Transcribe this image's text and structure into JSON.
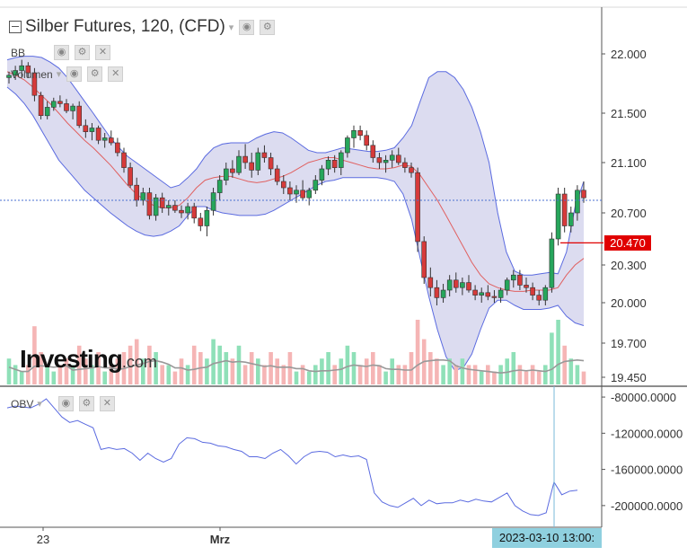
{
  "header": {
    "title": "Silber Futures, 120, (CFD)",
    "bb_label": "BB",
    "volume_label": "Volumen",
    "obv_label": "OBV"
  },
  "price_tag": "20.470",
  "date_tag": "2023-03-10 13:00:",
  "logo": {
    "text": "Investing",
    "suffix": ".com"
  },
  "colors": {
    "up": "#26a65b",
    "down": "#d63a3a",
    "band_line": "#5b6be0",
    "band_fill": "#dcdcf0",
    "mid_line": "#e06060",
    "obv_line": "#5b6be0",
    "vol_up": "#8fe0b8",
    "vol_down": "#f5b5b5",
    "vol_ma": "#999999",
    "price_line": "#4a6fd0",
    "crosshair": "#7ab8d8"
  },
  "chart_data": [
    {
      "type": "candlestick",
      "title": "Silber Futures, 120, (CFD)",
      "xlabels": [
        "23",
        "Mrz"
      ],
      "ylim": [
        19.4,
        22.2
      ],
      "yticks": [
        "22.000",
        "21.500",
        "21.100",
        "20.700",
        "20.300",
        "20.000",
        "19.700",
        "19.450"
      ],
      "current_price": 20.47,
      "last_close_line": 20.8,
      "indicators": [
        "BB",
        "Volumen"
      ],
      "candles": [
        [
          21.8,
          21.85,
          21.75,
          21.82
        ],
        [
          21.82,
          21.9,
          21.78,
          21.86
        ],
        [
          21.86,
          21.95,
          21.8,
          21.9
        ],
        [
          21.9,
          21.93,
          21.8,
          21.84
        ],
        [
          21.84,
          21.88,
          21.6,
          21.65
        ],
        [
          21.65,
          21.68,
          21.45,
          21.48
        ],
        [
          21.48,
          21.6,
          21.45,
          21.55
        ],
        [
          21.55,
          21.63,
          21.52,
          21.6
        ],
        [
          21.6,
          21.65,
          21.55,
          21.58
        ],
        [
          21.58,
          21.62,
          21.5,
          21.52
        ],
        [
          21.52,
          21.58,
          21.45,
          21.56
        ],
        [
          21.56,
          21.6,
          21.38,
          21.4
        ],
        [
          21.4,
          21.45,
          21.3,
          21.35
        ],
        [
          21.35,
          21.42,
          21.28,
          21.38
        ],
        [
          21.38,
          21.4,
          21.25,
          21.28
        ],
        [
          21.28,
          21.34,
          21.22,
          21.3
        ],
        [
          21.3,
          21.36,
          21.24,
          21.26
        ],
        [
          21.26,
          21.3,
          21.15,
          21.18
        ],
        [
          21.18,
          21.22,
          21.02,
          21.06
        ],
        [
          21.06,
          21.1,
          20.9,
          20.92
        ],
        [
          20.92,
          20.98,
          20.75,
          20.8
        ],
        [
          20.8,
          20.9,
          20.76,
          20.86
        ],
        [
          20.86,
          20.9,
          20.65,
          20.68
        ],
        [
          20.68,
          20.85,
          20.64,
          20.82
        ],
        [
          20.82,
          20.86,
          20.7,
          20.74
        ],
        [
          20.74,
          20.8,
          20.68,
          20.76
        ],
        [
          20.76,
          20.8,
          20.7,
          20.72
        ],
        [
          20.72,
          20.76,
          20.66,
          20.7
        ],
        [
          20.7,
          20.78,
          20.65,
          20.75
        ],
        [
          20.75,
          20.78,
          20.62,
          20.66
        ],
        [
          20.66,
          20.7,
          20.56,
          20.6
        ],
        [
          20.6,
          20.75,
          20.52,
          20.72
        ],
        [
          20.72,
          20.9,
          20.68,
          20.86
        ],
        [
          20.86,
          21.0,
          20.8,
          20.96
        ],
        [
          20.96,
          21.1,
          20.92,
          21.05
        ],
        [
          21.05,
          21.12,
          20.98,
          21.02
        ],
        [
          21.02,
          21.2,
          21.0,
          21.15
        ],
        [
          21.15,
          21.25,
          21.05,
          21.1
        ],
        [
          21.1,
          21.18,
          20.98,
          21.04
        ],
        [
          21.04,
          21.22,
          21.0,
          21.18
        ],
        [
          21.18,
          21.24,
          21.1,
          21.14
        ],
        [
          21.14,
          21.18,
          21.0,
          21.05
        ],
        [
          21.05,
          21.08,
          20.92,
          20.95
        ],
        [
          20.95,
          21.0,
          20.85,
          20.9
        ],
        [
          20.9,
          20.95,
          20.8,
          20.85
        ],
        [
          20.85,
          20.92,
          20.78,
          20.88
        ],
        [
          20.88,
          20.96,
          20.8,
          20.82
        ],
        [
          20.82,
          20.9,
          20.76,
          20.88
        ],
        [
          20.88,
          21.0,
          20.85,
          20.96
        ],
        [
          20.96,
          21.08,
          20.92,
          21.05
        ],
        [
          21.05,
          21.15,
          21.0,
          21.12
        ],
        [
          21.12,
          21.16,
          21.02,
          21.06
        ],
        [
          21.06,
          21.2,
          21.0,
          21.18
        ],
        [
          21.18,
          21.32,
          21.14,
          21.3
        ],
        [
          21.3,
          21.4,
          21.22,
          21.36
        ],
        [
          21.36,
          21.4,
          21.28,
          21.32
        ],
        [
          21.32,
          21.36,
          21.2,
          21.24
        ],
        [
          21.24,
          21.28,
          21.1,
          21.14
        ],
        [
          21.14,
          21.18,
          21.05,
          21.1
        ],
        [
          21.1,
          21.16,
          21.02,
          21.12
        ],
        [
          21.12,
          21.2,
          21.06,
          21.16
        ],
        [
          21.16,
          21.22,
          21.08,
          21.1
        ],
        [
          21.1,
          21.14,
          21.02,
          21.06
        ],
        [
          21.06,
          21.1,
          20.98,
          21.02
        ],
        [
          21.02,
          21.06,
          20.4,
          20.48
        ],
        [
          20.48,
          20.52,
          20.15,
          20.2
        ],
        [
          20.2,
          20.28,
          20.05,
          20.12
        ],
        [
          20.12,
          20.18,
          19.98,
          20.04
        ],
        [
          20.04,
          20.15,
          20.0,
          20.1
        ],
        [
          20.1,
          20.22,
          20.05,
          20.18
        ],
        [
          20.18,
          20.24,
          20.08,
          20.12
        ],
        [
          20.12,
          20.2,
          20.06,
          20.16
        ],
        [
          20.16,
          20.22,
          20.08,
          20.1
        ],
        [
          20.1,
          20.14,
          20.02,
          20.06
        ],
        [
          20.06,
          20.12,
          20.0,
          20.08
        ],
        [
          20.08,
          20.14,
          20.02,
          20.05
        ],
        [
          20.05,
          20.1,
          20.0,
          20.04
        ],
        [
          20.04,
          20.12,
          20.0,
          20.1
        ],
        [
          20.1,
          20.2,
          20.06,
          20.18
        ],
        [
          20.18,
          20.26,
          20.12,
          20.22
        ],
        [
          20.22,
          20.26,
          20.1,
          20.14
        ],
        [
          20.14,
          20.2,
          20.08,
          20.12
        ],
        [
          20.12,
          20.16,
          20.02,
          20.06
        ],
        [
          20.06,
          20.1,
          19.98,
          20.02
        ],
        [
          20.02,
          20.14,
          19.98,
          20.12
        ],
        [
          20.12,
          20.55,
          20.08,
          20.5
        ],
        [
          20.5,
          20.9,
          20.45,
          20.85
        ],
        [
          20.85,
          20.9,
          20.55,
          20.6
        ],
        [
          20.6,
          20.75,
          20.55,
          20.7
        ],
        [
          20.7,
          20.92,
          20.64,
          20.88
        ],
        [
          20.88,
          20.95,
          20.78,
          20.82
        ]
      ]
    },
    {
      "type": "bollinger_bands",
      "upper": [
        21.95,
        21.97,
        21.98,
        21.98,
        21.97,
        21.93,
        21.88,
        21.8,
        21.7,
        21.6,
        21.5,
        21.4,
        21.3,
        21.22,
        21.15,
        21.1,
        21.05,
        21.0,
        20.95,
        20.9,
        20.92,
        20.98,
        21.05,
        21.15,
        21.22,
        21.25,
        21.26,
        21.26,
        21.26,
        21.3,
        21.33,
        21.35,
        21.34,
        21.3,
        21.25,
        21.2,
        21.18,
        21.18,
        21.2,
        21.22,
        21.21,
        21.2,
        21.19,
        21.19,
        21.2,
        21.22,
        21.3,
        21.4,
        21.6,
        21.8,
        21.85,
        21.85,
        21.8,
        21.7,
        21.55,
        21.35,
        21.1,
        20.7,
        20.4,
        20.25,
        20.22,
        20.22,
        20.23,
        20.24,
        20.23,
        20.4,
        20.75,
        20.95
      ],
      "middle": [
        21.85,
        21.82,
        21.78,
        21.72,
        21.65,
        21.58,
        21.5,
        21.42,
        21.35,
        21.28,
        21.22,
        21.15,
        21.08,
        21.0,
        20.92,
        20.85,
        20.8,
        20.76,
        20.74,
        20.74,
        20.76,
        20.82,
        20.9,
        20.96,
        20.98,
        20.99,
        20.99,
        20.97,
        20.95,
        20.94,
        20.95,
        20.97,
        20.99,
        21.02,
        21.06,
        21.1,
        21.12,
        21.14,
        21.14,
        21.12,
        21.1,
        21.08,
        21.06,
        21.05,
        21.05,
        21.06,
        21.08,
        21.07,
        21.0,
        20.9,
        20.8,
        20.68,
        20.56,
        20.44,
        20.32,
        20.22,
        20.15,
        20.12,
        20.1,
        20.09,
        20.09,
        20.1,
        20.1,
        20.1,
        20.12,
        20.22,
        20.3,
        20.35
      ],
      "lower": [
        21.72,
        21.66,
        21.58,
        21.48,
        21.36,
        21.24,
        21.12,
        21.04,
        20.96,
        20.88,
        20.82,
        20.76,
        20.7,
        20.65,
        20.6,
        20.56,
        20.53,
        20.52,
        20.53,
        20.56,
        20.6,
        20.68,
        20.75,
        20.75,
        20.72,
        20.7,
        20.69,
        20.68,
        20.68,
        20.68,
        20.69,
        20.72,
        20.76,
        20.8,
        20.84,
        20.88,
        20.92,
        20.95,
        20.96,
        20.98,
        20.98,
        20.98,
        20.98,
        20.98,
        20.97,
        20.95,
        20.85,
        20.65,
        20.35,
        20.05,
        19.8,
        19.6,
        19.5,
        19.52,
        19.62,
        19.8,
        19.96,
        20.02,
        20.02,
        19.98,
        19.95,
        19.95,
        19.95,
        19.96,
        19.98,
        19.9,
        19.85,
        19.83
      ]
    },
    {
      "type": "bar",
      "name": "Volumen",
      "values": [
        4,
        3,
        2,
        3,
        9,
        5,
        3,
        2,
        3,
        4,
        3,
        6,
        4,
        3,
        5,
        2,
        3,
        4,
        5,
        6,
        7,
        4,
        6,
        5,
        3,
        3,
        2,
        4,
        3,
        6,
        5,
        4,
        7,
        6,
        5,
        4,
        6,
        3,
        5,
        4,
        3,
        5,
        4,
        3,
        5,
        2,
        3,
        2,
        3,
        4,
        5,
        3,
        4,
        6,
        5,
        3,
        4,
        5,
        3,
        2,
        4,
        3,
        3,
        5,
        10,
        7,
        5,
        4,
        3,
        4,
        3,
        4,
        3,
        3,
        2,
        3,
        2,
        3,
        4,
        5,
        3,
        2,
        3,
        2,
        3,
        8,
        10,
        6,
        4,
        3,
        2
      ],
      "up": [
        1,
        1,
        1,
        0,
        0,
        0,
        1,
        1,
        0,
        0,
        1,
        0,
        0,
        1,
        0,
        1,
        0,
        0,
        0,
        0,
        0,
        1,
        0,
        1,
        0,
        1,
        0,
        0,
        1,
        0,
        0,
        1,
        1,
        1,
        1,
        0,
        1,
        0,
        0,
        1,
        0,
        0,
        0,
        0,
        0,
        1,
        0,
        1,
        1,
        1,
        1,
        0,
        1,
        1,
        1,
        0,
        0,
        0,
        0,
        1,
        1,
        0,
        0,
        0,
        0,
        0,
        0,
        0,
        1,
        1,
        0,
        1,
        0,
        0,
        1,
        0,
        0,
        1,
        1,
        1,
        0,
        0,
        0,
        0,
        1,
        1,
        1,
        0,
        1,
        1,
        0
      ]
    },
    {
      "type": "line",
      "name": "OBV",
      "yticks": [
        "-80000.0000",
        "-120000.0000",
        "-160000.0000",
        "-200000.0000"
      ],
      "ylim": [
        -222000,
        -70000
      ],
      "values": [
        -92000,
        -90000,
        -91000,
        -92000,
        -88000,
        -82000,
        -92000,
        -102000,
        -108000,
        -106000,
        -110000,
        -114000,
        -138000,
        -136000,
        -138000,
        -137000,
        -142000,
        -150000,
        -142000,
        -148000,
        -152000,
        -148000,
        -132000,
        -125000,
        -126000,
        -130000,
        -131000,
        -134000,
        -135000,
        -138000,
        -140000,
        -146000,
        -146000,
        -148000,
        -142000,
        -138000,
        -145000,
        -154000,
        -146000,
        -141000,
        -140000,
        -141000,
        -146000,
        -144000,
        -146000,
        -145000,
        -149000,
        -186000,
        -196000,
        -200000,
        -202000,
        -197000,
        -192000,
        -200000,
        -194000,
        -198000,
        -197000,
        -197000,
        -194000,
        -196000,
        -193000,
        -195000,
        -196000,
        -191000,
        -186000,
        -200000,
        -206000,
        -210000,
        -211000,
        -208000,
        -174000,
        -188000,
        -184000,
        -183000
      ]
    }
  ]
}
